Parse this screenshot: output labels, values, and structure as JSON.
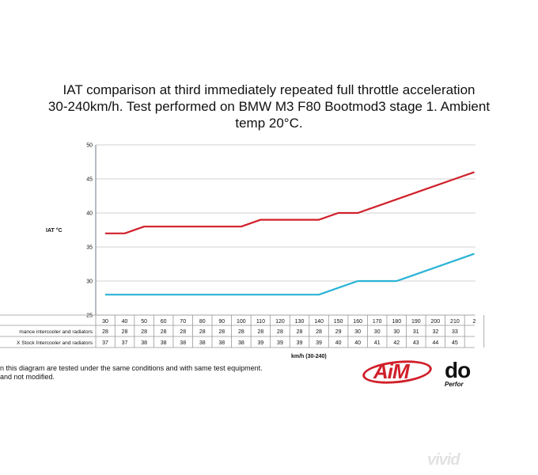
{
  "title_lines": [
    "IAT comparison at third immediately repeated full throttle acceleration",
    "30-240km/h. Test performed on BMW M3 F80 Bootmod3 stage 1. Ambient",
    "temp 20°C."
  ],
  "colors": {
    "red": "#d0202a",
    "blue": "#2ab3d6",
    "grid": "#d0d0d0",
    "axis": "#6b7a8c"
  },
  "chart_data": {
    "type": "line",
    "title": "IAT comparison at third immediately repeated full throttle acceleration 30-240km/h. Test performed on BMW M3 F80 Bootmod3 stage 1. Ambient temp 20°C.",
    "ylabel": "IAT °C",
    "xlabel": "km/h (30-240)",
    "ylim": [
      25,
      50
    ],
    "yticks": [
      25,
      30,
      35,
      40,
      45,
      50
    ],
    "grid": "horizontal",
    "categories": [
      "30",
      "40",
      "50",
      "60",
      "70",
      "80",
      "90",
      "100",
      "110",
      "120",
      "130",
      "140",
      "150",
      "160",
      "170",
      "180",
      "190",
      "200",
      "210",
      "2"
    ],
    "series": [
      {
        "name": "mance intercooler and radiators",
        "color": "#2ab3d6",
        "line_values": [
          28,
          28,
          28,
          28,
          28,
          28,
          28,
          28,
          28,
          28,
          28,
          28,
          29,
          30,
          30,
          30,
          31,
          32,
          33,
          34
        ],
        "row_values": [
          "28",
          "28",
          "28",
          "28",
          "28",
          "28",
          "28",
          "28",
          "28",
          "28",
          "28",
          "28",
          "29",
          "30",
          "30",
          "30",
          "31",
          "32",
          "33",
          ""
        ]
      },
      {
        "name": "X Stock Intercooler and radiators",
        "color": "#d0202a",
        "line_values": [
          37,
          37,
          38,
          38,
          38,
          38,
          38,
          38,
          39,
          39,
          39,
          39,
          40,
          40,
          41,
          42,
          43,
          44,
          45,
          46
        ],
        "row_values": [
          "37",
          "37",
          "38",
          "38",
          "38",
          "38",
          "38",
          "38",
          "39",
          "39",
          "39",
          "39",
          "40",
          "40",
          "41",
          "42",
          "43",
          "44",
          "45",
          ""
        ]
      }
    ]
  },
  "footnote_lines": [
    "n this diagram are tested under the same conditions and with same test equipment.",
    "and not modified."
  ],
  "logos": {
    "aim": "AiM",
    "do": "do",
    "do_sub": "Perfor",
    "vivid": "vivid"
  }
}
